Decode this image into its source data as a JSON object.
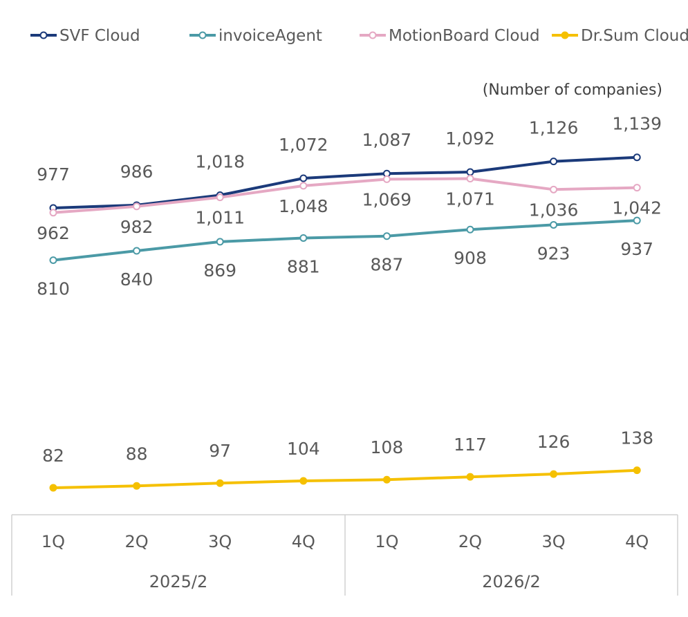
{
  "chart_data": {
    "type": "line",
    "unit_label": "(Number of companies)",
    "categories": [
      "1Q",
      "2Q",
      "3Q",
      "4Q",
      "1Q",
      "2Q",
      "3Q",
      "4Q"
    ],
    "groups": [
      {
        "label": "2025/2",
        "span": 4
      },
      {
        "label": "2026/2",
        "span": 4
      }
    ],
    "series": [
      {
        "name": "SVF Cloud",
        "color": "#1b3a7a",
        "marker": "hollow",
        "values": [
          977,
          986,
          1018,
          1072,
          1087,
          1092,
          1126,
          1139
        ]
      },
      {
        "name": "invoiceAgent",
        "color": "#4b9aa6",
        "marker": "hollow",
        "values": [
          810,
          840,
          869,
          881,
          887,
          908,
          923,
          937
        ]
      },
      {
        "name": "MotionBoard Cloud",
        "color": "#e5a8c3",
        "marker": "hollow",
        "values": [
          962,
          982,
          1011,
          1048,
          1069,
          1071,
          1036,
          1042
        ]
      },
      {
        "name": "Dr.Sum Cloud",
        "color": "#f5c000",
        "marker": "filled",
        "values": [
          82,
          88,
          97,
          104,
          108,
          117,
          126,
          138
        ]
      }
    ],
    "data_labels": [
      [
        "977",
        "986",
        "1,018",
        "1,072",
        "1,087",
        "1,092",
        "1,126",
        "1,139"
      ],
      [
        "810",
        "840",
        "869",
        "881",
        "887",
        "908",
        "923",
        "937"
      ],
      [
        "962",
        "982",
        "1,011",
        "1,048",
        "1,069",
        "1,071",
        "1,036",
        "1,042"
      ],
      [
        "82",
        "88",
        "97",
        "104",
        "108",
        "117",
        "126",
        "138"
      ]
    ],
    "legend_position": "top",
    "grid": false
  }
}
